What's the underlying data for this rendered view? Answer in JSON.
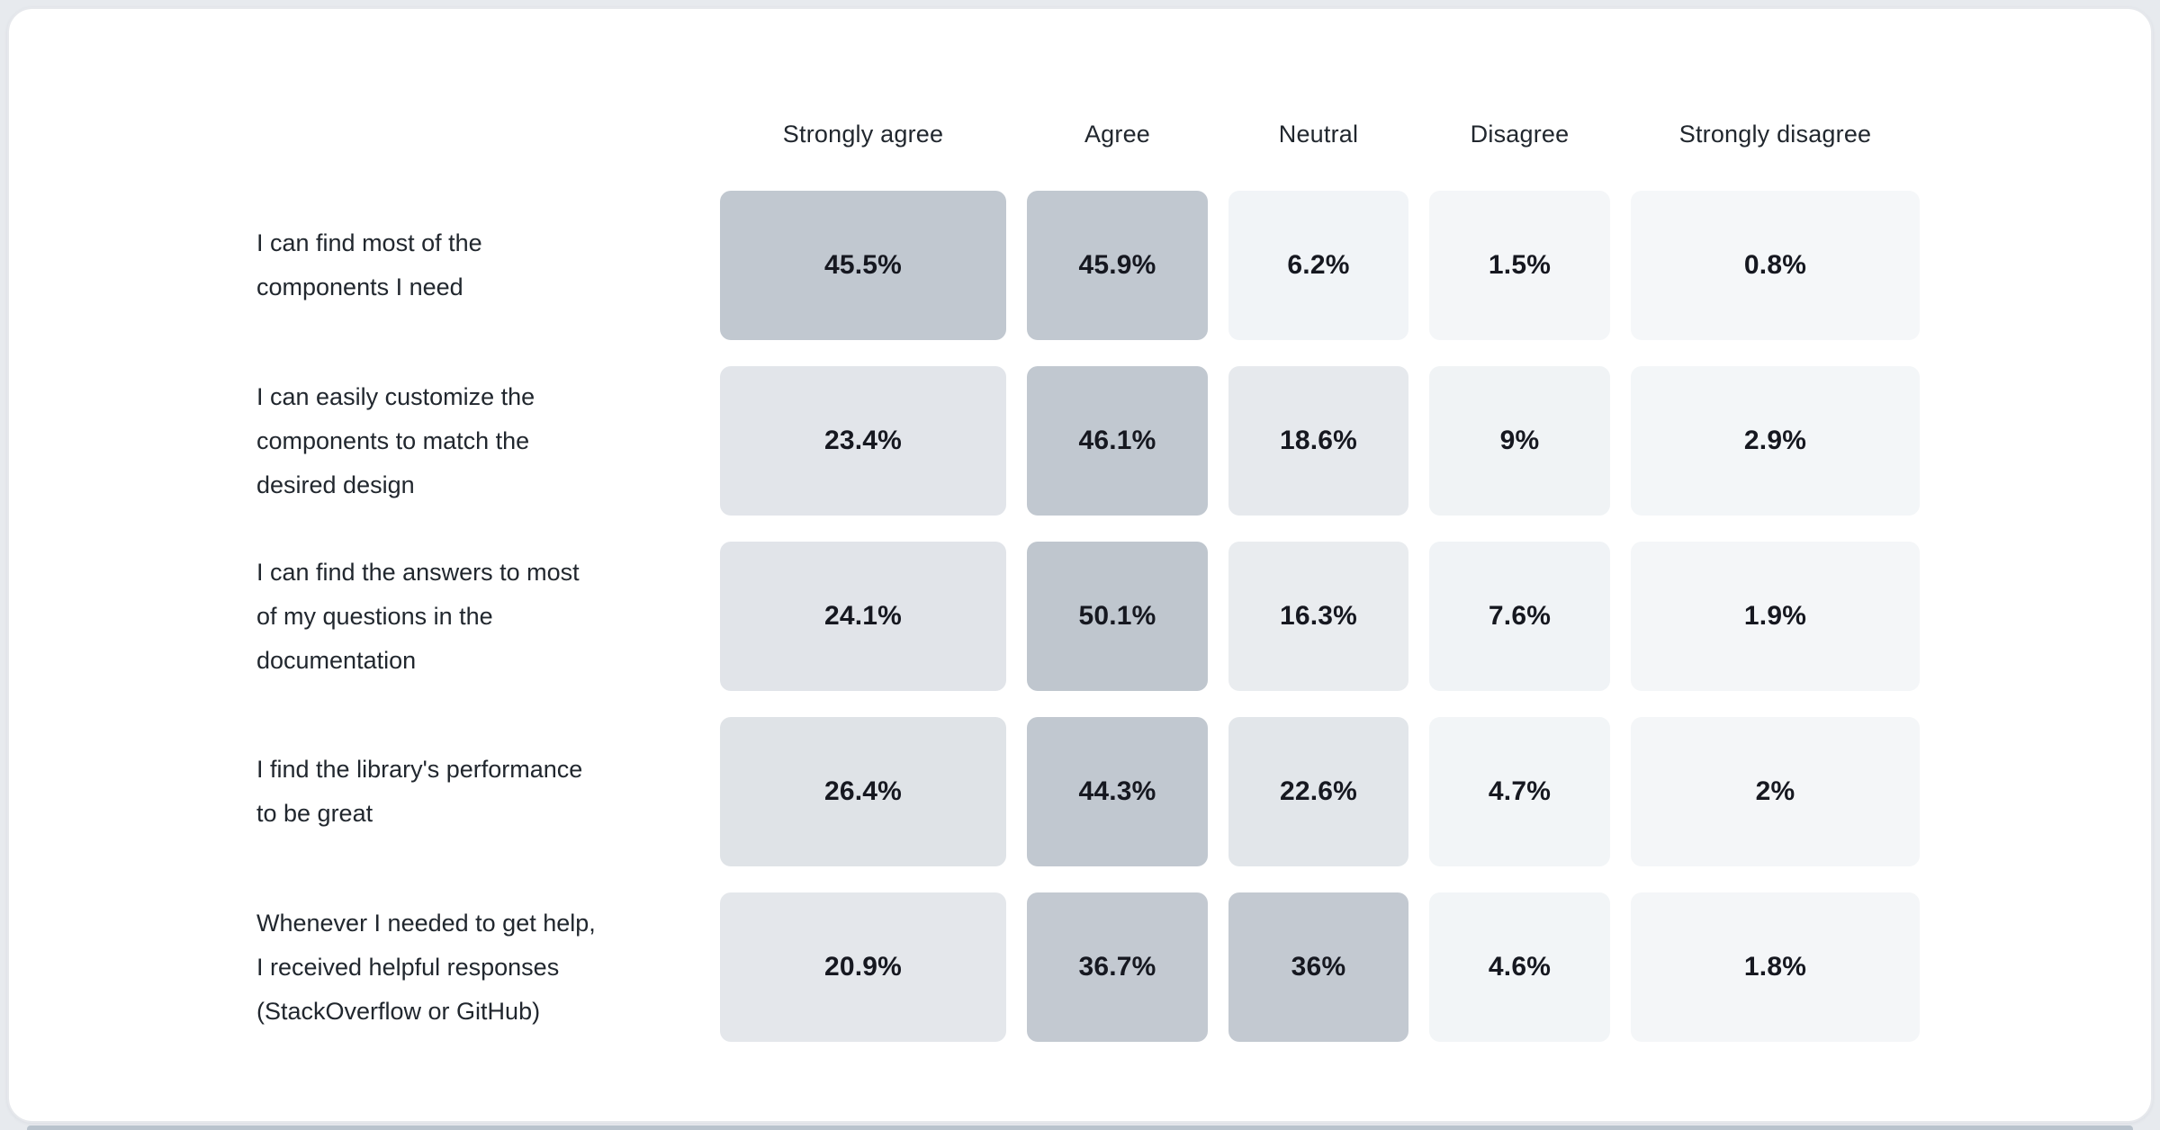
{
  "chart_data": {
    "type": "heatmap",
    "title": "",
    "columns": [
      "Strongly agree",
      "Agree",
      "Neutral",
      "Disagree",
      "Strongly disagree"
    ],
    "rows": [
      {
        "label": "I can find most of the components I need",
        "label_lines": [
          "I can find most of the",
          "components I need"
        ],
        "values": [
          45.5,
          45.9,
          6.2,
          1.5,
          0.8
        ],
        "display": [
          "45.5%",
          "45.9%",
          "6.2%",
          "1.5%",
          "0.8%"
        ]
      },
      {
        "label": "I can easily customize the components to match the desired design",
        "label_lines": [
          "I can easily customize the",
          "components to match the",
          "desired design"
        ],
        "values": [
          23.4,
          46.1,
          18.6,
          9,
          2.9
        ],
        "display": [
          "23.4%",
          "46.1%",
          "18.6%",
          "9%",
          "2.9%"
        ]
      },
      {
        "label": "I can find the answers to most of my questions in the documentation",
        "label_lines": [
          "I can find the answers to most",
          "of my questions in the",
          "documentation"
        ],
        "values": [
          24.1,
          50.1,
          16.3,
          7.6,
          1.9
        ],
        "display": [
          "24.1%",
          "50.1%",
          "16.3%",
          "7.6%",
          "1.9%"
        ]
      },
      {
        "label": "I find the library's performance to be great",
        "label_lines": [
          "I find the library's performance",
          "to be great"
        ],
        "values": [
          26.4,
          44.3,
          22.6,
          4.7,
          2
        ],
        "display": [
          "26.4%",
          "44.3%",
          "22.6%",
          "4.7%",
          "2%"
        ]
      },
      {
        "label": "Whenever I needed to get help, I received helpful responses (StackOverflow or GitHub)",
        "label_lines": [
          "Whenever I needed to get help,",
          "I received helpful responses",
          "(StackOverflow or GitHub)"
        ],
        "values": [
          20.9,
          36.7,
          36,
          4.6,
          1.8
        ],
        "display": [
          "20.9%",
          "36.7%",
          "36%",
          "4.6%",
          "1.8%"
        ]
      }
    ],
    "legend": "none",
    "grid": false,
    "color_scale": {
      "description": "cell background by percentage value, light blue-grey to grey-blue",
      "stops": [
        [
          0,
          "#f5f7f9"
        ],
        [
          10,
          "#eff2f5"
        ],
        [
          20,
          "#e5e8ec"
        ],
        [
          27,
          "#dee2e7"
        ],
        [
          36,
          "#c3c9d1"
        ],
        [
          46,
          "#c1c8d0"
        ],
        [
          51,
          "#bec5ce"
        ]
      ]
    },
    "value_text_color": "#161820",
    "label_text_color": "#21272e"
  },
  "page": {
    "card_background": "#ffffff",
    "card_border_color": "#e6e8ec",
    "bottom_edge_color": "#b9c3cd"
  }
}
